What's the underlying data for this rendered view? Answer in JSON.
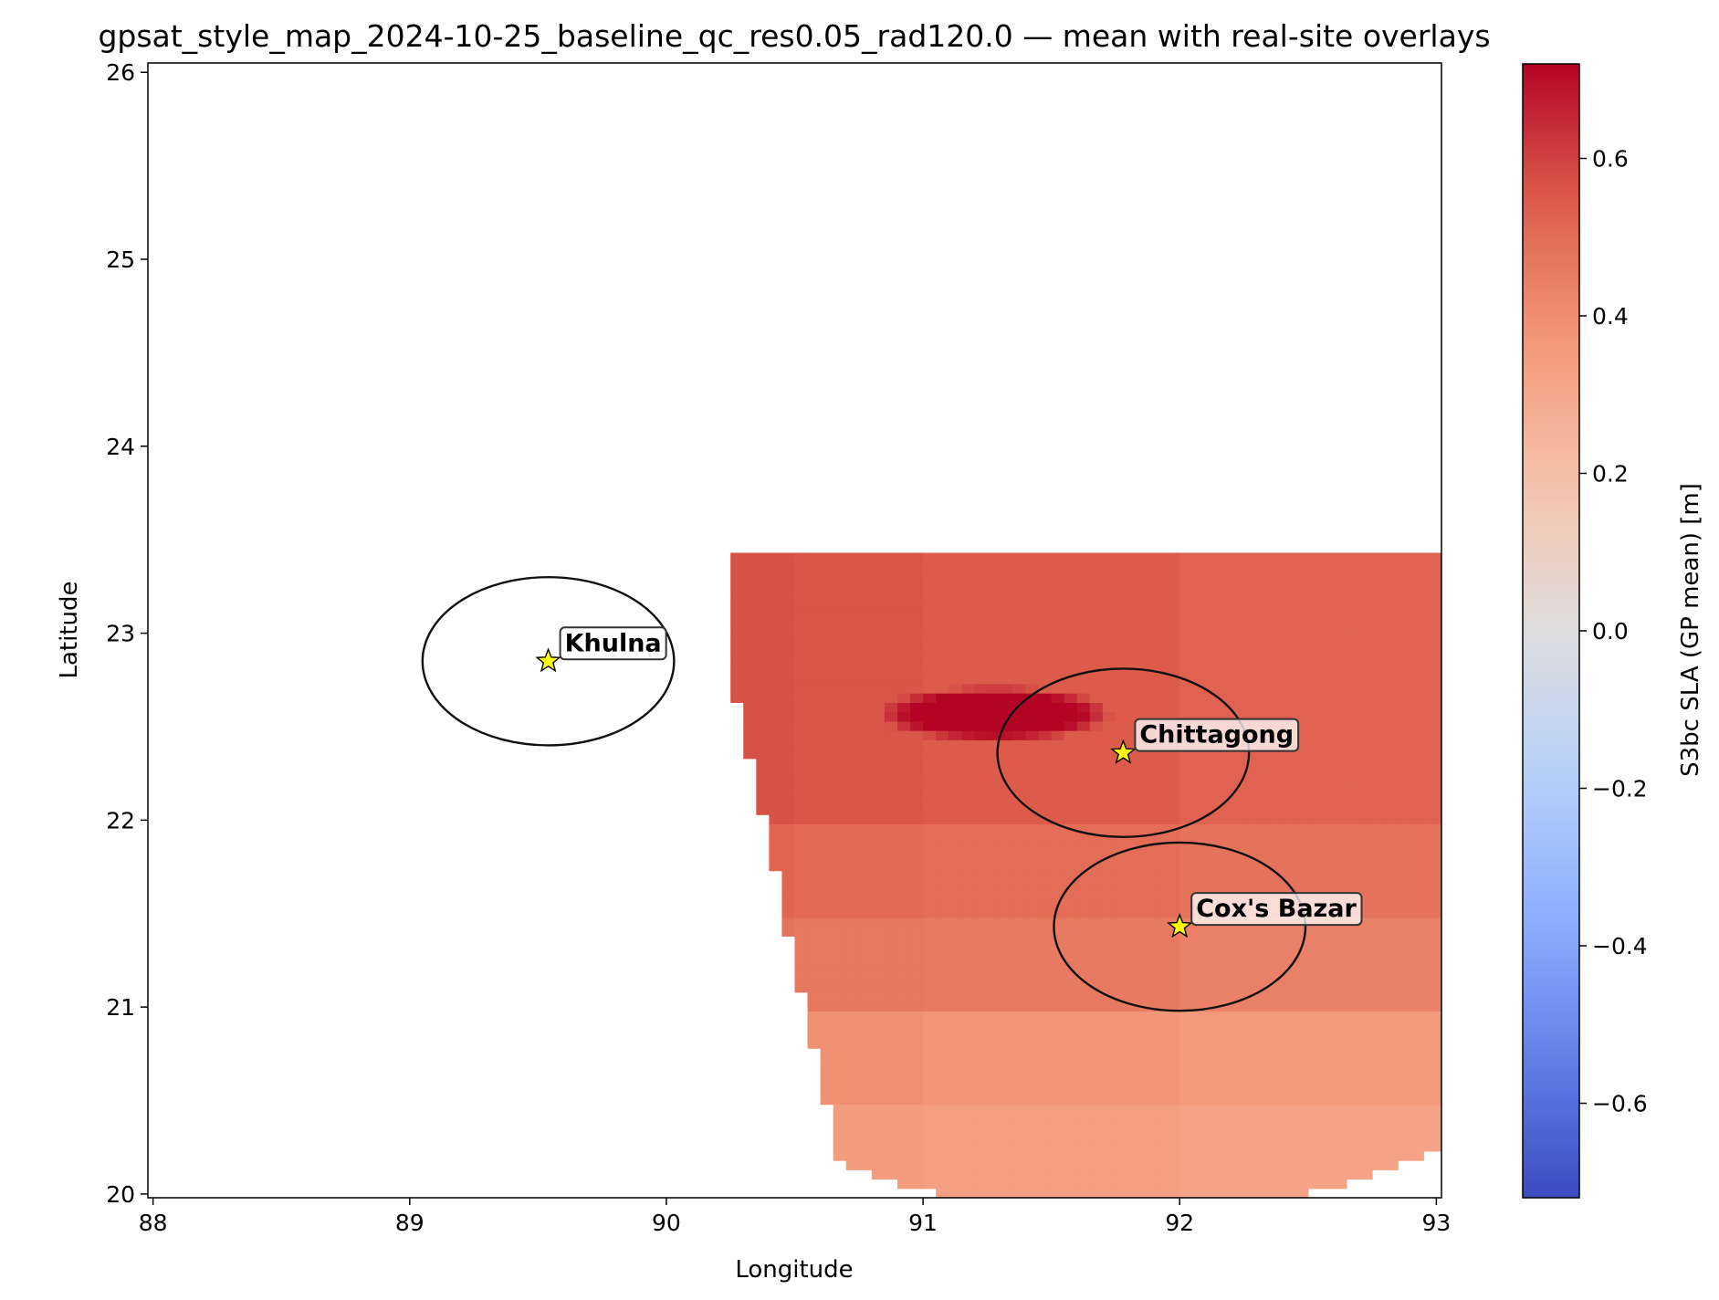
{
  "chart_data": {
    "type": "heatmap",
    "title": "gpsat_style_map_2024-10-25_baseline_qc_res0.05_rad120.0 — mean with real-site overlays",
    "xlabel": "Longitude",
    "ylabel": "Latitude",
    "xlim": [
      87.98,
      93.02
    ],
    "ylim": [
      19.98,
      26.05
    ],
    "x_ticks": [
      88,
      89,
      90,
      91,
      92,
      93
    ],
    "x_tick_labels": [
      "88",
      "89",
      "90",
      "91",
      "92",
      "93"
    ],
    "y_ticks": [
      20,
      21,
      22,
      23,
      24,
      25,
      26
    ],
    "y_tick_labels": [
      "20",
      "21",
      "22",
      "23",
      "24",
      "25",
      "26"
    ],
    "grid": false,
    "colorbar": {
      "label": "S3bc SLA (GP mean) [m]",
      "colormap": "coolwarm",
      "vmin": -0.72,
      "vmax": 0.72,
      "ticks": [
        -0.6,
        -0.4,
        -0.2,
        0.0,
        0.2,
        0.4,
        0.6
      ],
      "tick_labels": [
        "−0.6",
        "−0.4",
        "−0.2",
        "0.0",
        "0.2",
        "0.4",
        "0.6"
      ]
    },
    "field": {
      "grid_resolution_deg": 0.05,
      "data_coverage": {
        "center_lon": 91.78,
        "center_lat": 22.35,
        "radius_lon_deg": 2.39,
        "radius_lat_deg": 2.46,
        "cut_line_bottom_lon": 90.7,
        "cut_line_top_lon": 90.25,
        "cut_line_bottom_lat": 20.0,
        "cut_line_top_lat": 22.8
      },
      "lat_bands": [
        {
          "lat_min": 19.98,
          "lat_max": 20.48,
          "value": 0.34
        },
        {
          "lat_min": 20.48,
          "lat_max": 20.98,
          "value": 0.38
        },
        {
          "lat_min": 20.98,
          "lat_max": 21.48,
          "value": 0.46
        },
        {
          "lat_min": 21.48,
          "lat_max": 21.98,
          "value": 0.5
        },
        {
          "lat_min": 21.98,
          "lat_max": 23.4,
          "value": 0.55
        }
      ],
      "lon_adjust": [
        {
          "lon_min": 88.0,
          "lon_max": 90.5,
          "delta": 0.02
        },
        {
          "lon_min": 90.5,
          "lon_max": 91.0,
          "delta": 0.01
        },
        {
          "lon_min": 91.0,
          "lon_max": 92.0,
          "delta": 0.0
        },
        {
          "lon_min": 92.0,
          "lon_max": 93.1,
          "delta": -0.02
        }
      ],
      "peak": {
        "center_lon": 91.28,
        "center_lat": 22.57,
        "radius_lon_deg": 0.34,
        "radius_lat_deg": 0.11,
        "value": 0.72
      }
    },
    "sites": [
      {
        "name": "Khulna",
        "lon": 89.54,
        "lat": 22.85,
        "radius_lon_deg": 0.49,
        "radius_lat_deg": 0.45
      },
      {
        "name": "Chittagong",
        "lon": 91.78,
        "lat": 22.36,
        "radius_lon_deg": 0.49,
        "radius_lat_deg": 0.45
      },
      {
        "name": "Cox's Bazar",
        "lon": 92.0,
        "lat": 21.43,
        "radius_lon_deg": 0.49,
        "radius_lat_deg": 0.45
      }
    ],
    "colors": {
      "marker_fill": "#ffff00",
      "marker_edge": "#000000",
      "circle": "#111111",
      "label_box_fill": "#ffffff",
      "label_box_edge": "#333333"
    }
  }
}
